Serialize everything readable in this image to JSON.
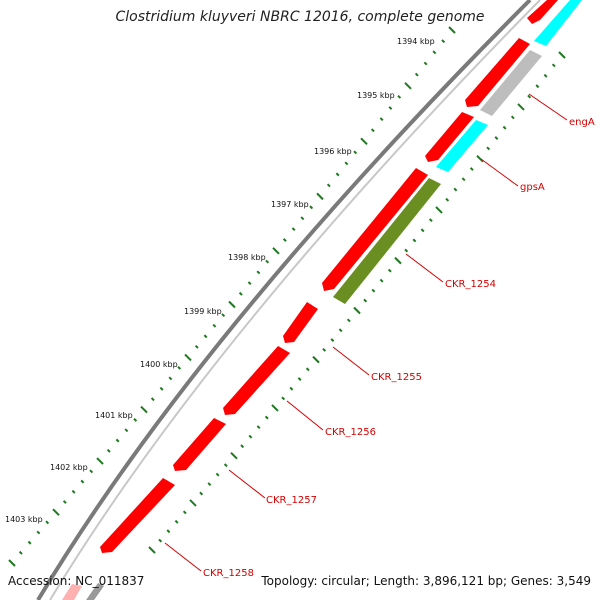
{
  "title": "Clostridium kluyveri NBRC 12016, complete genome",
  "footer": {
    "accession": "Accession: NC_011837",
    "summary": "Topology: circular; Length: 3,896,121 bp; Genes: 3,549"
  },
  "colors": {
    "backbone": "#7a7a7a",
    "cds_forward": "#ff0000",
    "cds_reverse": "#ff0000",
    "trna": "#00ffff",
    "rrna": "#bdbdbd",
    "misc_gene": "#6b8e23",
    "tick": "#1f7a1f",
    "gene_label": "#d40000"
  },
  "kbp_ticks": [
    {
      "label": "1394 kbp"
    },
    {
      "label": "1395 kbp"
    },
    {
      "label": "1396 kbp"
    },
    {
      "label": "1397 kbp"
    },
    {
      "label": "1398 kbp"
    },
    {
      "label": "1399 kbp"
    },
    {
      "label": "1400 kbp"
    },
    {
      "label": "1401 kbp"
    },
    {
      "label": "1402 kbp"
    },
    {
      "label": "1403 kbp"
    }
  ],
  "gene_labels": [
    {
      "name": "engA"
    },
    {
      "name": "gpsA"
    },
    {
      "name": "CKR_1254"
    },
    {
      "name": "CKR_1255"
    },
    {
      "name": "CKR_1256"
    },
    {
      "name": "CKR_1257"
    },
    {
      "name": "CKR_1258"
    }
  ]
}
